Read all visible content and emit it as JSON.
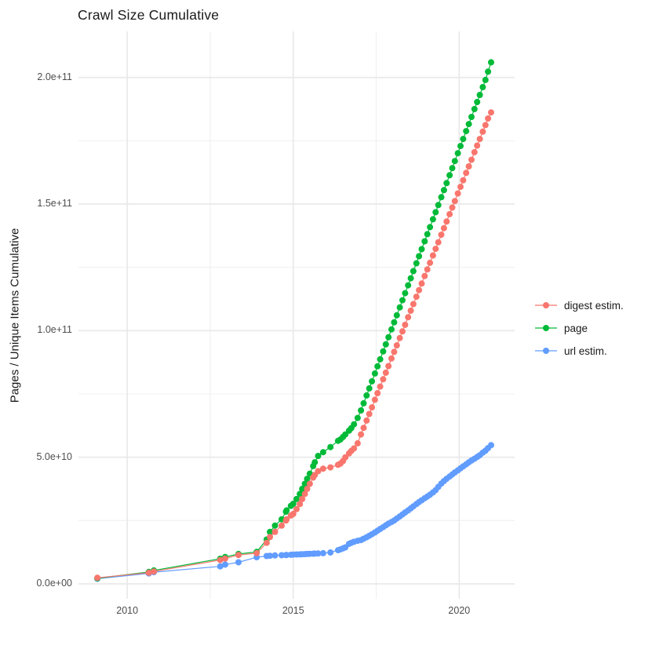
{
  "page": {
    "background": "#ffffff"
  },
  "chart_data": {
    "type": "line",
    "title": "Crawl Size Cumulative",
    "xlabel": "",
    "ylabel": "Pages / Unique Items Cumulative",
    "legend_position": "right",
    "grid": true,
    "x_unit": "year",
    "y_value_unit": "1e9",
    "xlim": [
      2008.53,
      2021.67
    ],
    "ylim_e9": [
      -5.9,
      218.2
    ],
    "x_major_ticks": [
      {
        "label": "2010",
        "value": 2010
      },
      {
        "label": "2015",
        "value": 2015
      },
      {
        "label": "2020",
        "value": 2020
      }
    ],
    "x_minor_ticks": [
      2012.5,
      2017.5
    ],
    "y_major_ticks": [
      {
        "label": "0.0e+00",
        "value_e9": 0
      },
      {
        "label": "5.0e+10",
        "value_e9": 50
      },
      {
        "label": "1.0e+11",
        "value_e9": 100
      },
      {
        "label": "1.5e+11",
        "value_e9": 150
      },
      {
        "label": "2.0e+11",
        "value_e9": 200
      }
    ],
    "y_minor_ticks_e9": [
      25,
      75,
      125,
      175
    ],
    "x": [
      2009.1,
      2010.65,
      2010.8,
      2012.8,
      2012.95,
      2013.35,
      2013.9,
      2014.2,
      2014.3,
      2014.45,
      2014.65,
      2014.78,
      2014.8,
      2014.93,
      2015.0,
      2015.1,
      2015.2,
      2015.27,
      2015.35,
      2015.42,
      2015.5,
      2015.6,
      2015.65,
      2015.75,
      2015.9,
      2016.12,
      2016.35,
      2016.42,
      2016.5,
      2016.57,
      2016.68,
      2016.75,
      2016.83,
      2016.94,
      2017.04,
      2017.12,
      2017.21,
      2017.29,
      2017.37,
      2017.46,
      2017.54,
      2017.62,
      2017.71,
      2017.79,
      2017.87,
      2017.96,
      2018.04,
      2018.12,
      2018.21,
      2018.29,
      2018.37,
      2018.46,
      2018.54,
      2018.62,
      2018.71,
      2018.79,
      2018.87,
      2018.96,
      2019.04,
      2019.12,
      2019.21,
      2019.29,
      2019.37,
      2019.46,
      2019.54,
      2019.62,
      2019.71,
      2019.79,
      2019.87,
      2019.96,
      2020.04,
      2020.12,
      2020.21,
      2020.29,
      2020.37,
      2020.46,
      2020.54,
      2020.62,
      2020.71,
      2020.79,
      2020.87,
      2020.96
    ],
    "series": [
      {
        "name": "digest estim.",
        "color": "#F8766D",
        "values_e9": [
          2.4,
          4.4,
          4.9,
          9.4,
          10.0,
          11.4,
          12.1,
          16.2,
          18.5,
          20.5,
          23.0,
          25.0,
          25.5,
          27.0,
          27.6,
          29.5,
          31.5,
          33.5,
          35.5,
          37.5,
          39.5,
          42.0,
          43.0,
          44.5,
          45.5,
          46.0,
          47.0,
          47.5,
          48.5,
          50.0,
          51.5,
          52.5,
          53.5,
          55.5,
          59.0,
          61.6,
          64.5,
          67.1,
          69.7,
          72.7,
          75.3,
          77.9,
          80.8,
          83.4,
          86.0,
          89.0,
          91.6,
          94.2,
          97.1,
          99.7,
          102.3,
          105.3,
          107.9,
          110.5,
          113.4,
          116.0,
          118.6,
          121.6,
          124.2,
          126.8,
          129.7,
          132.3,
          134.9,
          137.9,
          140.5,
          143.1,
          146.0,
          148.6,
          151.2,
          154.2,
          156.8,
          159.4,
          162.3,
          164.9,
          167.5,
          170.5,
          173.1,
          175.7,
          178.6,
          181.2,
          183.8,
          186.2
        ]
      },
      {
        "name": "page",
        "color": "#00BA38",
        "values_e9": [
          2.2,
          4.7,
          5.3,
          9.9,
          10.6,
          11.8,
          12.6,
          17.5,
          20.5,
          23.0,
          25.5,
          28.5,
          29.0,
          30.8,
          31.6,
          33.5,
          35.5,
          37.5,
          39.5,
          41.5,
          43.5,
          46.5,
          48.0,
          50.5,
          52.0,
          54.0,
          56.5,
          57.0,
          58.0,
          59.0,
          60.5,
          61.5,
          63.0,
          65.5,
          68.5,
          71.3,
          74.4,
          77.2,
          80.0,
          83.1,
          85.9,
          88.7,
          91.8,
          94.6,
          97.4,
          100.5,
          103.3,
          106.1,
          109.2,
          112.0,
          114.8,
          117.9,
          120.7,
          123.5,
          126.6,
          129.4,
          132.2,
          135.3,
          138.1,
          140.9,
          144.0,
          146.8,
          149.6,
          152.7,
          155.5,
          158.3,
          161.4,
          164.2,
          167.0,
          170.1,
          172.9,
          175.7,
          178.8,
          181.6,
          184.4,
          187.5,
          190.3,
          193.1,
          196.2,
          199.0,
          202.3,
          206.0
        ]
      },
      {
        "name": "url estim.",
        "color": "#619CFF",
        "values_e9": [
          2.0,
          4.1,
          4.6,
          6.9,
          7.6,
          8.5,
          10.5,
          11.0,
          11.1,
          11.2,
          11.3,
          11.35,
          11.4,
          11.5,
          11.55,
          11.6,
          11.65,
          11.7,
          11.75,
          11.8,
          11.85,
          11.9,
          11.95,
          12.0,
          12.1,
          12.4,
          13.3,
          13.6,
          14.0,
          14.4,
          15.8,
          16.2,
          16.6,
          17.0,
          17.3,
          17.8,
          18.4,
          19.0,
          19.6,
          20.3,
          21.0,
          21.7,
          22.4,
          23.1,
          23.8,
          24.4,
          25.0,
          25.8,
          26.6,
          27.4,
          28.2,
          29.0,
          29.8,
          30.6,
          31.5,
          32.3,
          33.0,
          33.8,
          34.5,
          35.2,
          36.1,
          37.0,
          38.3,
          39.6,
          40.6,
          41.5,
          42.4,
          43.2,
          44.0,
          44.8,
          45.6,
          46.4,
          47.2,
          48.0,
          48.7,
          49.4,
          50.1,
          50.8,
          51.8,
          52.6,
          53.6,
          54.8
        ]
      }
    ]
  }
}
